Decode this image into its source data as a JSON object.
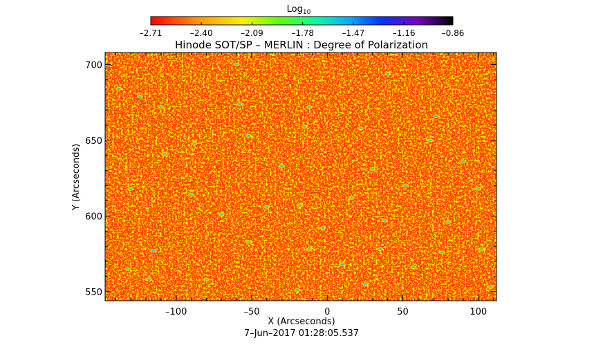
{
  "chart_data": {
    "type": "heatmap",
    "title": "Hinode SOT/SP – MERLIN : Degree of Polarization",
    "xlabel": "X (Arcseconds)",
    "ylabel": "Y (Arcseconds)",
    "footer": "7–Jun–2017 01:28:05.537",
    "xlim": [
      -147,
      112
    ],
    "ylim": [
      544,
      708
    ],
    "x_ticks": [
      -100,
      -50,
      0,
      50,
      100
    ],
    "x_tick_labels": [
      "–100",
      "–50",
      "0",
      "50",
      "100"
    ],
    "y_ticks": [
      550,
      600,
      650,
      700
    ],
    "y_tick_labels": [
      "550",
      "600",
      "650",
      "700"
    ],
    "colorbar": {
      "label_base": "Log",
      "label_sub": "10",
      "range": [
        -2.71,
        -0.86
      ],
      "ticks": [
        -2.71,
        -2.4,
        -2.09,
        -1.78,
        -1.47,
        -1.16,
        -0.86
      ],
      "tick_labels": [
        "–2.71",
        "–2.40",
        "–2.09",
        "–1.78",
        "–1.47",
        "–1.16",
        "–0.86"
      ],
      "colormap": "rainbow (red → yellow → green → cyan → blue → violet → black)"
    },
    "colors": {
      "background": "#ff3a00",
      "texture": "#ff7a00",
      "speckle": "#ffd400",
      "patch_green": "#3fe070",
      "patch_cyan": "#30c8d8"
    },
    "patches": [
      [
        -138,
        684
      ],
      [
        -124,
        679
      ],
      [
        -110,
        672
      ],
      [
        -58,
        674
      ],
      [
        -12,
        672
      ],
      [
        40,
        694
      ],
      [
        72,
        666
      ],
      [
        -108,
        641
      ],
      [
        -88,
        648
      ],
      [
        -52,
        653
      ],
      [
        -15,
        659
      ],
      [
        22,
        658
      ],
      [
        -30,
        633
      ],
      [
        30,
        631
      ],
      [
        68,
        650
      ],
      [
        90,
        636
      ],
      [
        -130,
        618
      ],
      [
        -90,
        614
      ],
      [
        -18,
        607
      ],
      [
        -40,
        606
      ],
      [
        16,
        612
      ],
      [
        52,
        620
      ],
      [
        100,
        618
      ],
      [
        -70,
        601
      ],
      [
        -3,
        592
      ],
      [
        38,
        597
      ],
      [
        80,
        596
      ],
      [
        -115,
        577
      ],
      [
        -52,
        583
      ],
      [
        -12,
        578
      ],
      [
        35,
        578
      ],
      [
        76,
        576
      ],
      [
        102,
        578
      ],
      [
        -118,
        558
      ],
      [
        -80,
        558
      ],
      [
        -20,
        551
      ],
      [
        25,
        555
      ],
      [
        57,
        566
      ],
      [
        108,
        553
      ],
      [
        10,
        568
      ],
      [
        -132,
        565
      ],
      [
        -60,
        700
      ]
    ]
  }
}
